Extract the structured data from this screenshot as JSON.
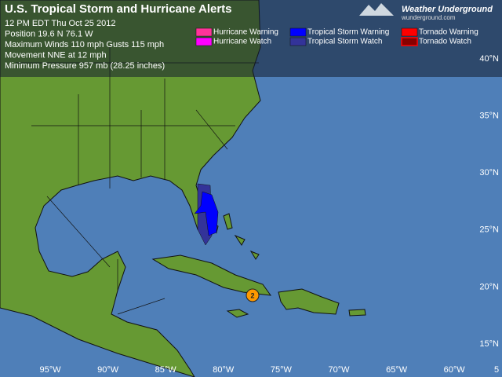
{
  "header": {
    "title": "U.S. Tropical Storm and Hurricane Alerts",
    "info": [
      "12 PM EDT Thu Oct 25 2012",
      "Position 19.6 N 76.1 W",
      "Maximum Winds  110 mph  Gusts  115 mph",
      "Movement NNE at 12 mph",
      "Minimum Pressure 957 mb (28.25 inches)"
    ]
  },
  "legend": [
    {
      "label": "Hurricane Warning",
      "color": "#ff3399"
    },
    {
      "label": "Hurricane Watch",
      "color": "#ff00ff"
    },
    {
      "label": "Tropical Storm Warning",
      "color": "#0000ff"
    },
    {
      "label": "Tropical Storm Watch",
      "color": "#333399"
    },
    {
      "label": "Tornado Warning",
      "color": "#ff0000"
    },
    {
      "label": "Tornado Watch",
      "color": "#880000"
    }
  ],
  "logo": {
    "name": "Weather Underground",
    "url": "wunderground.com"
  },
  "grid": {
    "latitudes": [
      "40°N",
      "35°N",
      "30°N",
      "25°N",
      "20°N",
      "15°N"
    ],
    "longitudes": [
      "95°W",
      "90°W",
      "85°W",
      "80°W",
      "75°W",
      "70°W",
      "65°W",
      "60°W",
      "5"
    ]
  },
  "storm": {
    "label": "2"
  }
}
